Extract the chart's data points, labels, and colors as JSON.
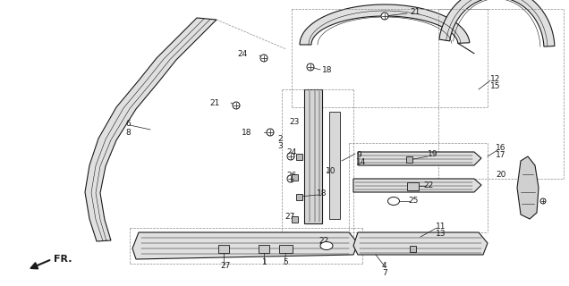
{
  "bg_color": "#ffffff",
  "line_color": "#000000",
  "gray_fill": "#d8d8d8",
  "light_gray": "#eeeeee"
}
